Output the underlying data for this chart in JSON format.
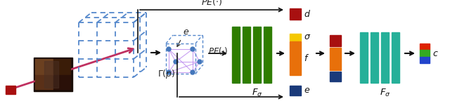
{
  "fig_width": 6.4,
  "fig_height": 1.51,
  "dpi": 100,
  "bg_color": "#ffffff",
  "colors": {
    "dark_red": "#A81010",
    "orange": "#E8700A",
    "yellow": "#F5C800",
    "green_dark": "#2E7D00",
    "teal": "#26B099",
    "navy": "#1A3A7A",
    "dashed_blue": "#5588CC",
    "pink_arrow": "#C03060",
    "arrow_color": "#111111",
    "graph_edge": "#BB88EE",
    "graph_node": "#4477BB"
  }
}
